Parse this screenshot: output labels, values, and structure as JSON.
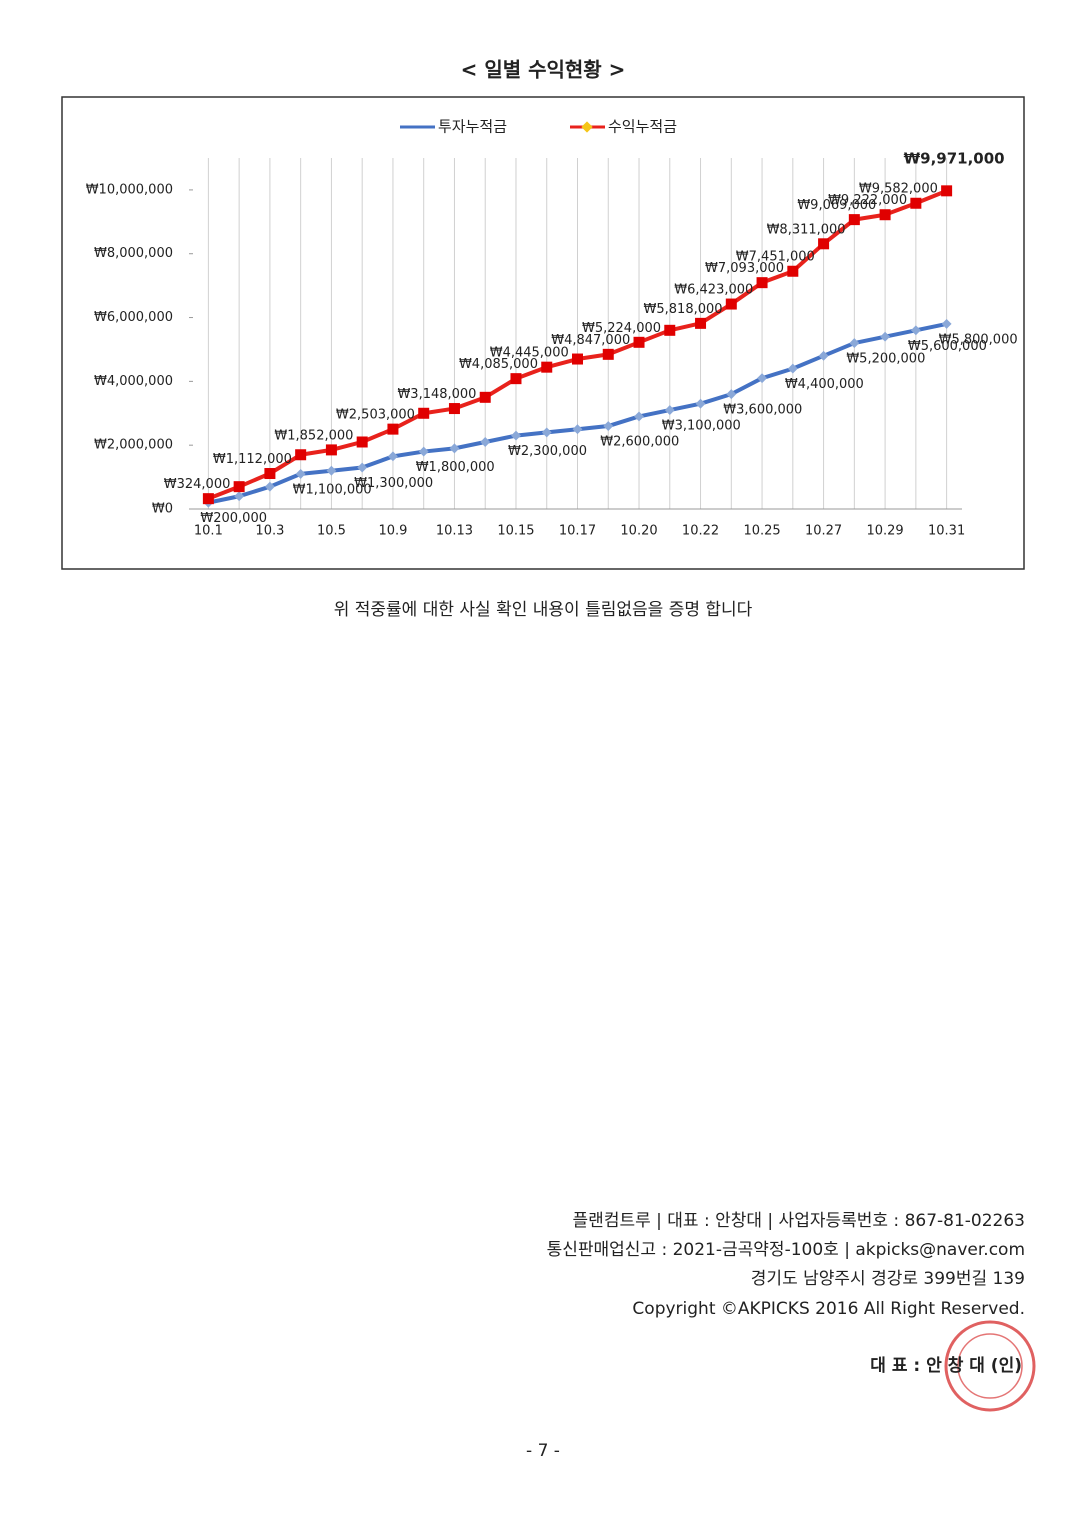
{
  "chart_data": {
    "type": "line",
    "title": "< 일별 수익현황 >",
    "categories": [
      "10.1",
      null,
      "10.3",
      null,
      "10.5",
      null,
      "10.9",
      null,
      "10.13",
      null,
      "10.15",
      null,
      "10.17",
      null,
      "10.20",
      null,
      "10.22",
      null,
      "10.25",
      null,
      "10.27",
      null,
      "10.29",
      null,
      "10.31"
    ],
    "series": [
      {
        "name": "투자누적금",
        "color": "#4472c4",
        "values": [
          200000,
          400000,
          700000,
          1100000,
          1200000,
          1300000,
          1650000,
          1800000,
          1900000,
          2100000,
          2300000,
          2400000,
          2500000,
          2600000,
          2900000,
          3100000,
          3300000,
          3600000,
          4100000,
          4400000,
          4800000,
          5200000,
          5400000,
          5600000,
          5800000
        ],
        "value_labels": [
          "₩200,000",
          null,
          null,
          "₩1,100,000",
          null,
          "₩1,300,000",
          null,
          "₩1,800,000",
          null,
          null,
          "₩2,300,000",
          null,
          null,
          "₩2,600,000",
          null,
          "₩3,100,000",
          null,
          "₩3,600,000",
          null,
          "₩4,400,000",
          null,
          "₩5,200,000",
          null,
          "₩5,600,000",
          "₩5,800,000"
        ]
      },
      {
        "name": "수익누적금",
        "color": "#e8221c",
        "values": [
          324000,
          700000,
          1112000,
          1700000,
          1852000,
          2100000,
          2503000,
          3000000,
          3148000,
          3500000,
          4085000,
          4445000,
          4700000,
          4847000,
          5224000,
          5600000,
          5818000,
          6423000,
          7093000,
          7451000,
          8311000,
          9069000,
          9222000,
          9582000,
          9971000
        ],
        "value_labels": [
          "₩324,000",
          null,
          "₩1,112,000",
          null,
          "₩1,852,000",
          null,
          "₩2,503,000",
          null,
          "₩3,148,000",
          null,
          "₩4,085,000",
          "₩4,445,000",
          null,
          "₩4,847,000",
          "₩5,224,000",
          null,
          "₩5,818,000",
          "₩6,423,000",
          "₩7,093,000",
          "₩7,451,000",
          "₩8,311,000",
          "₩9,069,000",
          "₩9,222,000",
          "₩9,582,000",
          "₩9,971,000"
        ]
      }
    ],
    "ylim": [
      0,
      11000000
    ],
    "yticks": [
      {
        "value": 0,
        "label": "₩0"
      },
      {
        "value": 2000000,
        "label": "₩2,000,000"
      },
      {
        "value": 4000000,
        "label": "₩4,000,000"
      },
      {
        "value": 6000000,
        "label": "₩6,000,000"
      },
      {
        "value": 8000000,
        "label": "₩8,000,000"
      },
      {
        "value": 10000000,
        "label": "₩10,000,000"
      }
    ],
    "grid": true,
    "legend": "top"
  },
  "statement": "위 적중률에 대한 사실 확인 내용이 틀림없음을 증명 합니다",
  "footer": {
    "lines": [
      "플랜컴트루 | 대표 : 안창대 | 사업자등록번호 : 867-81-02263",
      "통신판매업신고 : 2021-금곡약정-100호 | akpicks@naver.com",
      "경기도 남양주시 경강로 399번길 139",
      "Copyright ©AKPICKS 2016 All Right Reserved."
    ]
  },
  "signature": "대 표 : 안 창 대 (인)",
  "page_number": "- 7 -"
}
